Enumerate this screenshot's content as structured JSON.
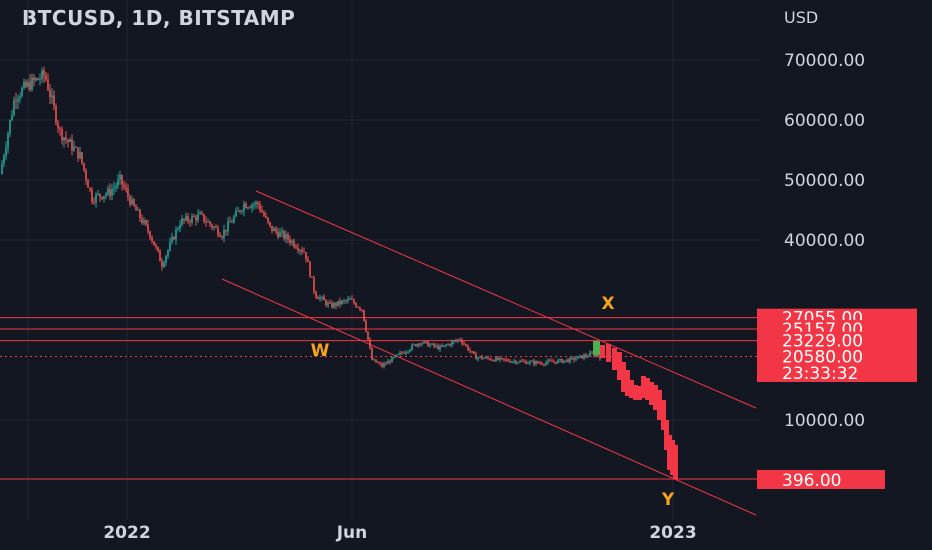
{
  "header": {
    "symbol_title": "BTCUSD, 1D, BITSTAMP",
    "currency": "USD"
  },
  "colors": {
    "background": "#131722",
    "up": "#26a69a",
    "down": "#ef5350",
    "projection": "#f23645",
    "annotation": "#f7a21b",
    "text": "#d1d4dc",
    "grid": "#1f2533"
  },
  "chart_data": {
    "type": "candlestick",
    "title": "BTCUSD, 1D, BITSTAMP",
    "ylabel": "USD",
    "y_ticks": [
      "70000.00",
      "60000.00",
      "50000.00",
      "40000.00",
      "10000.00"
    ],
    "y_tick_values": [
      70000,
      60000,
      50000,
      40000,
      10000
    ],
    "x_ticks": [
      "2022",
      "Jun",
      "2023"
    ],
    "price_tags": [
      {
        "label": "27055.00",
        "value": 27055
      },
      {
        "label": "25157.00",
        "value": 25157
      },
      {
        "label": "23229.00",
        "value": 23229
      },
      {
        "label": "20580.00",
        "value": 20580
      },
      {
        "label": "23:33:32",
        "value": null
      },
      {
        "label": "396.00",
        "value": 396
      }
    ],
    "annotations": [
      "W",
      "X",
      "Y"
    ]
  }
}
